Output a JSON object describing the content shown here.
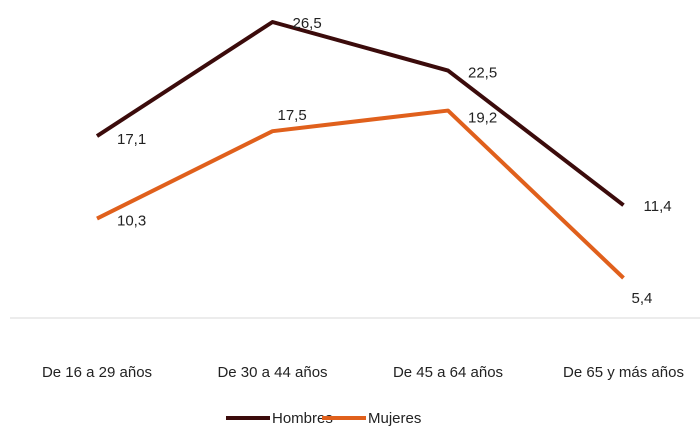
{
  "chart_data": {
    "type": "line",
    "categories": [
      "De 16 a 29 años",
      "De 30 a 44 años",
      "De 45 a 64 años",
      "De 65 y más años"
    ],
    "series": [
      {
        "name": "Hombres",
        "color": "#3b0b0b",
        "values": [
          17.1,
          26.5,
          22.5,
          11.4
        ],
        "value_labels": [
          "17,1",
          "26,5",
          "22,5",
          "11,4"
        ]
      },
      {
        "name": "Mujeres",
        "color": "#e0601c",
        "values": [
          10.3,
          17.5,
          19.2,
          5.4
        ],
        "value_labels": [
          "10,3",
          "17,5",
          "19,2",
          "5,4"
        ]
      }
    ],
    "legend": "bottom"
  }
}
